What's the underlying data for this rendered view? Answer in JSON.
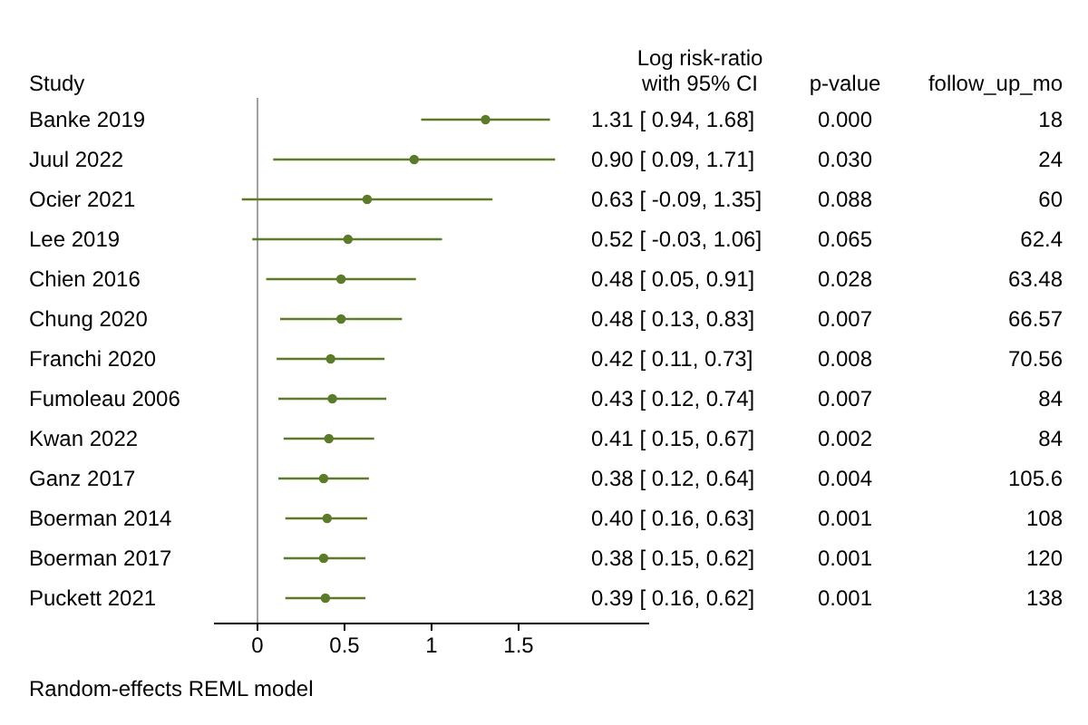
{
  "chart_data": {
    "type": "scatter",
    "orientation": "horizontal",
    "marker": "circle",
    "grid": false,
    "categories": [
      "Banke 2019",
      "Juul 2022",
      "Ocier 2021",
      "Lee 2019",
      "Chien 2016",
      "Chung 2020",
      "Franchi 2020",
      "Fumoleau 2006",
      "Kwan 2022",
      "Ganz 2017",
      "Boerman 2014",
      "Boerman 2017",
      "Puckett 2021"
    ],
    "series": [
      {
        "color": "#5b7a2a",
        "values": [
          1.31,
          0.9,
          0.63,
          0.52,
          0.48,
          0.48,
          0.42,
          0.43,
          0.41,
          0.38,
          0.4,
          0.38,
          0.39
        ],
        "errors": [
          [
            0.94,
            1.68
          ],
          [
            0.09,
            1.71
          ],
          [
            -0.09,
            1.35
          ],
          [
            -0.03,
            1.06
          ],
          [
            0.05,
            0.91
          ],
          [
            0.13,
            0.83
          ],
          [
            0.11,
            0.73
          ],
          [
            0.12,
            0.74
          ],
          [
            0.15,
            0.67
          ],
          [
            0.12,
            0.64
          ],
          [
            0.16,
            0.63
          ],
          [
            0.15,
            0.62
          ],
          [
            0.16,
            0.62
          ]
        ],
        "value_labels": [
          "1.31 [ 0.94, 1.68]",
          "0.90 [ 0.09, 1.71]",
          "0.63 [ -0.09, 1.35]",
          "0.52 [ -0.03, 1.06]",
          "0.48 [ 0.05, 0.91]",
          "0.48 [ 0.13, 0.83]",
          "0.42 [ 0.11, 0.73]",
          "0.43 [ 0.12, 0.74]",
          "0.41 [ 0.15, 0.67]",
          "0.38 [ 0.12, 0.64]",
          "0.40 [ 0.16, 0.63]",
          "0.38 [ 0.15, 0.62]",
          "0.39 [ 0.16, 0.62]"
        ]
      }
    ],
    "xlim": [
      -0.25,
      2.25
    ],
    "xticks": [
      0,
      0.5,
      1,
      1.5
    ],
    "ref_lines": [
      {
        "axis": "x",
        "value": 0,
        "color": "#a0a0a0"
      }
    ],
    "annotations": [
      "Study",
      "Log risk-ratio with 95% CI",
      "p-value",
      "follow_up_mo",
      "Random-effects REML model",
      "0.000",
      "18",
      "0.030",
      "24",
      "0.088",
      "60",
      "0.065",
      "62.4",
      "0.028",
      "63.48",
      "0.007",
      "66.57",
      "0.008",
      "70.56",
      "0.007",
      "84",
      "0.002",
      "84",
      "0.004",
      "105.6",
      "0.001",
      "108",
      "0.001",
      "120",
      "0.001",
      "138"
    ]
  }
}
